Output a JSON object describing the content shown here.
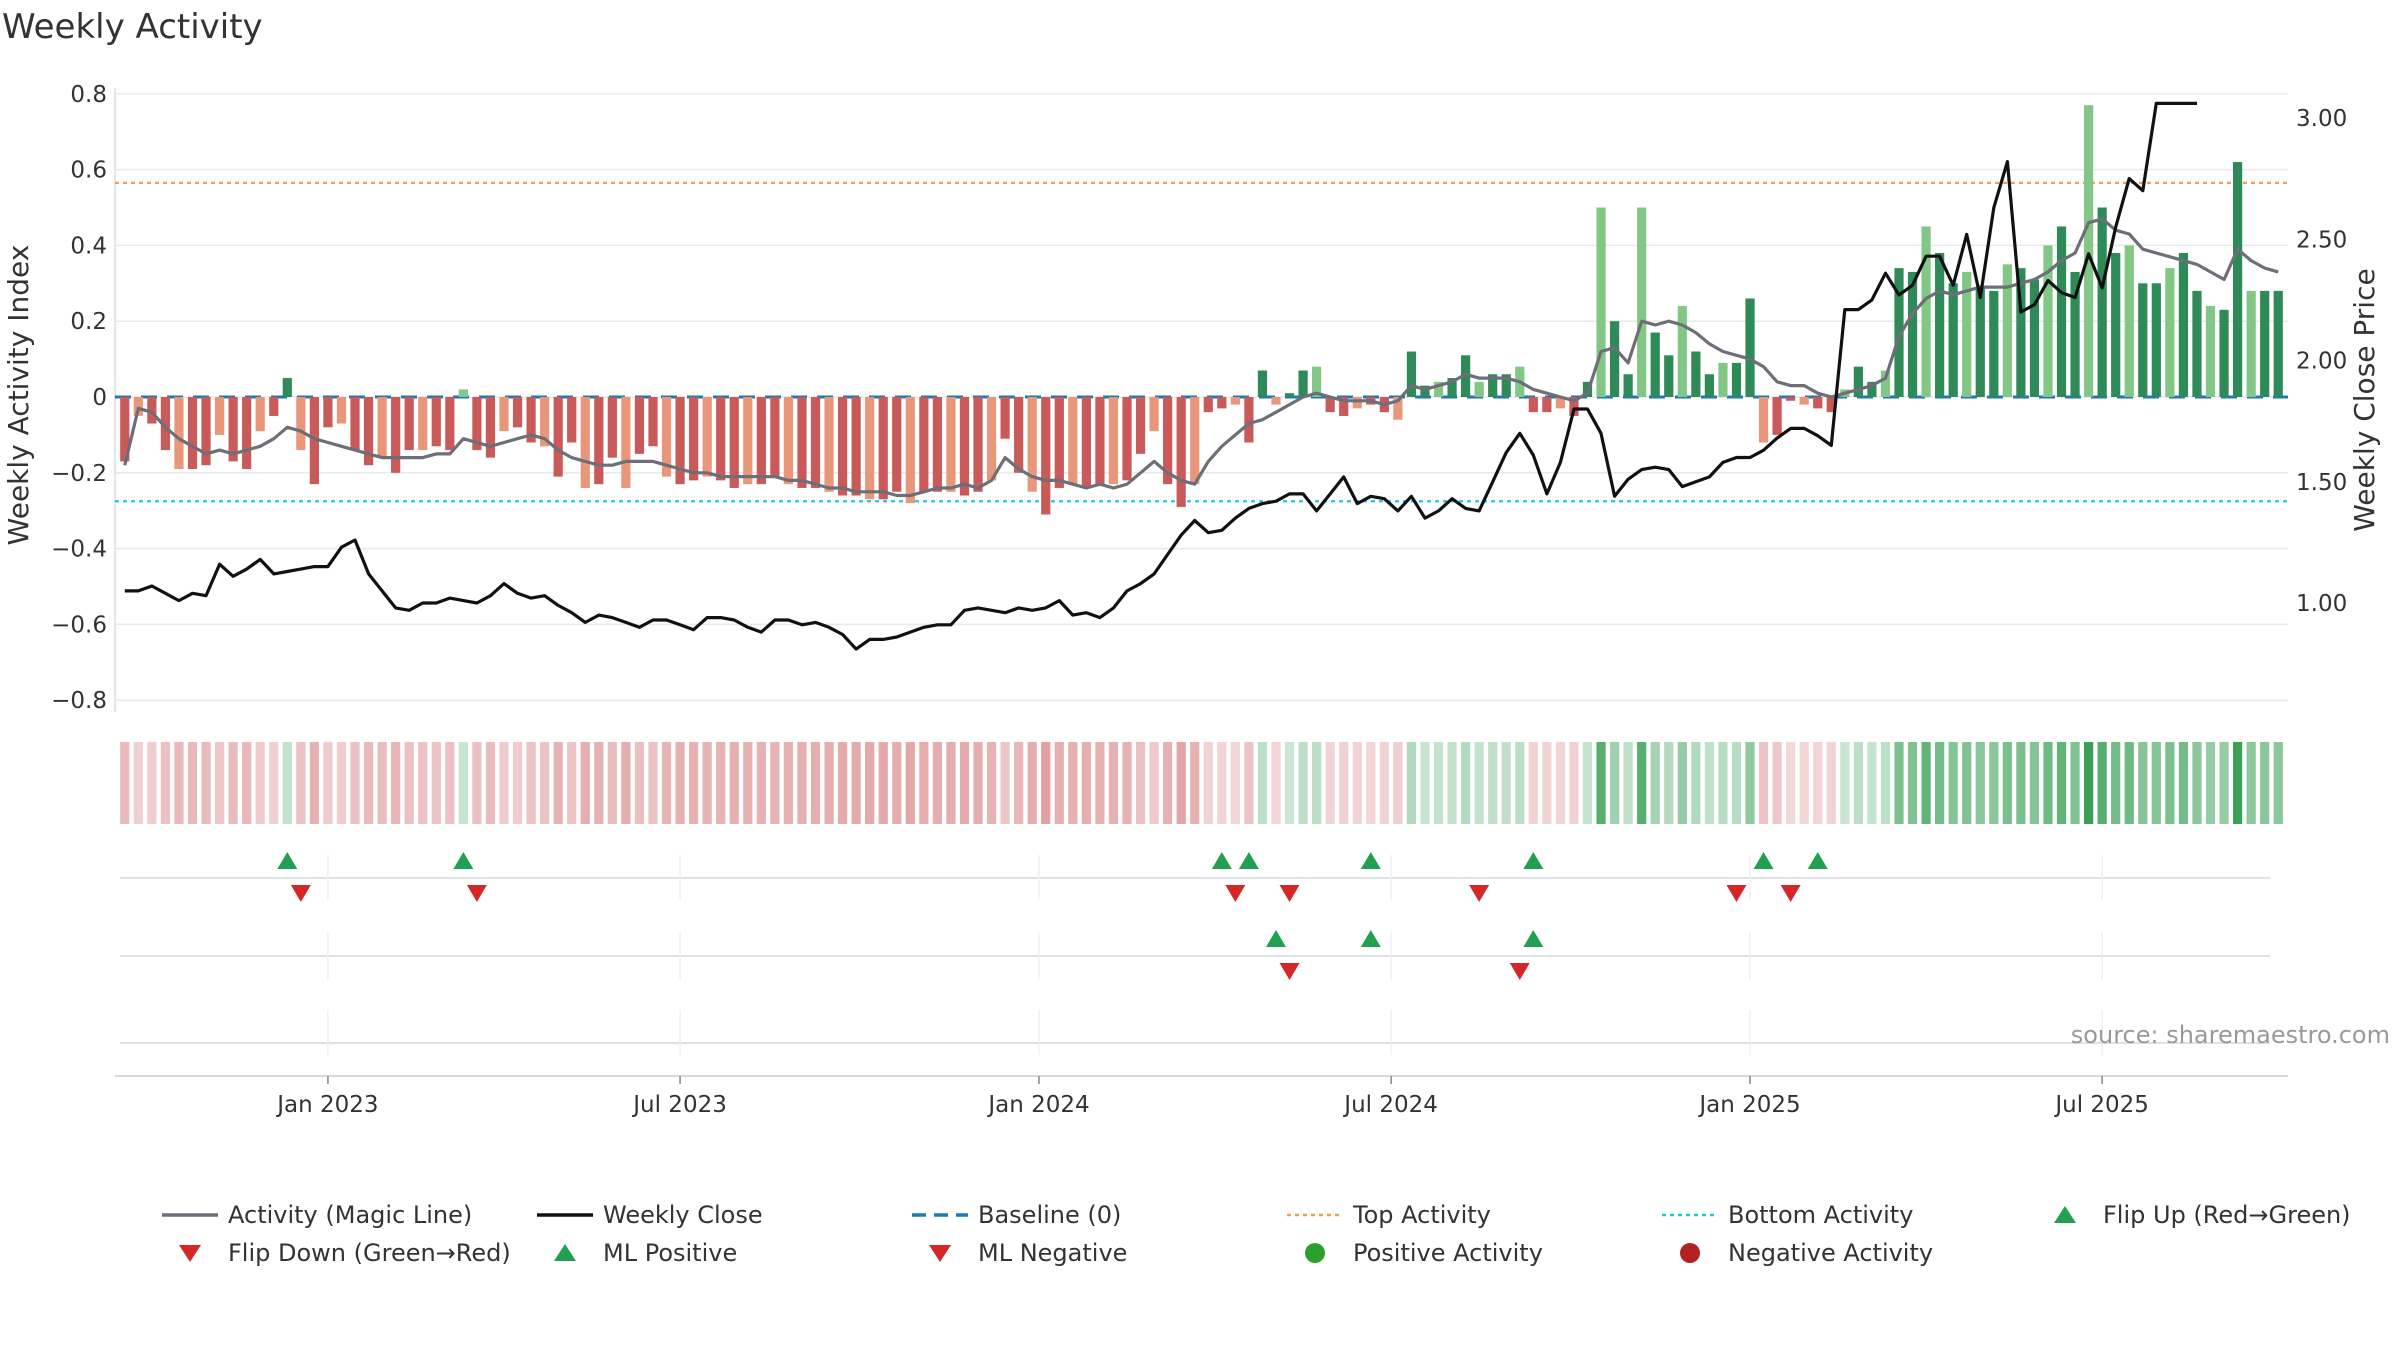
{
  "title": "Weekly Activity",
  "source": "source: sharemaestro.com",
  "colors": {
    "pos_dark": "#2e8b57",
    "pos_light": "#82c785",
    "neg_dark": "#c85a5a",
    "neg_light": "#e9977a",
    "magic": "#6e6e78",
    "close": "#111111",
    "baseline": "#1f77b4",
    "top": "#f0a050",
    "bottom": "#22c6d8",
    "up": "#22a052",
    "down": "#d62728"
  },
  "chart_data": {
    "type": "bar",
    "title": "Weekly Activity",
    "ylabel_left": "Weekly Activity Index",
    "ylabel_right": "Weekly Close Price",
    "ylim_left": [
      -0.82,
      0.82
    ],
    "ylim_right": [
      0.56,
      3.12
    ],
    "yticks_left": [
      "0.8",
      "0.6",
      "0.4",
      "0.2",
      "0",
      "−0.2",
      "−0.4",
      "−0.6",
      "−0.8"
    ],
    "yticks_right": [
      "3.00",
      "2.50",
      "2.00",
      "1.50",
      "1.00"
    ],
    "x_start_week": 0,
    "x_end_week": 158,
    "x_ticks": [
      {
        "label": "Jan 2023",
        "week": 15
      },
      {
        "label": "Jul 2023",
        "week": 41
      },
      {
        "label": "Jan 2024",
        "week": 67.5
      },
      {
        "label": "Jul 2024",
        "week": 93.5
      },
      {
        "label": "Jan 2025",
        "week": 120
      },
      {
        "label": "Jul 2025",
        "week": 146
      }
    ],
    "top_activity": 0.565,
    "bottom_activity": -0.275,
    "activity_bars": [
      -0.17,
      -0.05,
      -0.07,
      -0.14,
      -0.19,
      -0.19,
      -0.18,
      -0.1,
      -0.17,
      -0.19,
      -0.09,
      -0.05,
      0.05,
      -0.14,
      -0.23,
      -0.08,
      -0.07,
      -0.14,
      -0.18,
      -0.16,
      -0.2,
      -0.14,
      -0.14,
      -0.13,
      -0.14,
      0.02,
      -0.14,
      -0.16,
      -0.09,
      -0.08,
      -0.12,
      -0.13,
      -0.21,
      -0.12,
      -0.24,
      -0.23,
      -0.16,
      -0.24,
      -0.15,
      -0.13,
      -0.21,
      -0.23,
      -0.22,
      -0.21,
      -0.22,
      -0.24,
      -0.23,
      -0.23,
      -0.21,
      -0.23,
      -0.24,
      -0.24,
      -0.25,
      -0.26,
      -0.26,
      -0.27,
      -0.27,
      -0.25,
      -0.28,
      -0.25,
      -0.25,
      -0.25,
      -0.26,
      -0.25,
      -0.22,
      -0.11,
      -0.2,
      -0.25,
      -0.31,
      -0.24,
      -0.23,
      -0.24,
      -0.23,
      -0.23,
      -0.22,
      -0.15,
      -0.09,
      -0.23,
      -0.29,
      -0.23,
      -0.04,
      -0.03,
      -0.02,
      -0.12,
      0.07,
      -0.02,
      0.01,
      0.07,
      0.08,
      -0.04,
      -0.05,
      -0.03,
      -0.02,
      -0.04,
      -0.06,
      0.12,
      0.03,
      0.04,
      0.05,
      0.11,
      0.04,
      0.06,
      0.06,
      0.08,
      -0.04,
      -0.04,
      -0.03,
      -0.05,
      0.04,
      0.5,
      0.2,
      0.06,
      0.5,
      0.17,
      0.11,
      0.24,
      0.12,
      0.06,
      0.09,
      0.09,
      0.26,
      -0.12,
      -0.1,
      -0.01,
      -0.02,
      -0.03,
      -0.04,
      0.02,
      0.08,
      0.04,
      0.07,
      0.34,
      0.33,
      0.45,
      0.38,
      0.3,
      0.33,
      0.29,
      0.28,
      0.35,
      0.34,
      0.31,
      0.4,
      0.45,
      0.33,
      0.77,
      0.5,
      0.38,
      0.4,
      0.3,
      0.3,
      0.34,
      0.38,
      0.28,
      0.24,
      0.23,
      0.62,
      0.28,
      0.28,
      0.28
    ],
    "magic_line": [
      -0.18,
      -0.03,
      -0.04,
      -0.08,
      -0.11,
      -0.13,
      -0.15,
      -0.14,
      -0.15,
      -0.14,
      -0.13,
      -0.11,
      -0.08,
      -0.09,
      -0.11,
      -0.12,
      -0.13,
      -0.14,
      -0.15,
      -0.16,
      -0.16,
      -0.16,
      -0.16,
      -0.15,
      -0.15,
      -0.11,
      -0.12,
      -0.13,
      -0.12,
      -0.11,
      -0.1,
      -0.11,
      -0.14,
      -0.16,
      -0.17,
      -0.18,
      -0.18,
      -0.17,
      -0.17,
      -0.17,
      -0.18,
      -0.19,
      -0.2,
      -0.2,
      -0.21,
      -0.21,
      -0.21,
      -0.21,
      -0.21,
      -0.22,
      -0.22,
      -0.23,
      -0.24,
      -0.24,
      -0.25,
      -0.25,
      -0.25,
      -0.26,
      -0.26,
      -0.25,
      -0.24,
      -0.24,
      -0.23,
      -0.24,
      -0.22,
      -0.16,
      -0.19,
      -0.21,
      -0.22,
      -0.22,
      -0.23,
      -0.24,
      -0.23,
      -0.24,
      -0.23,
      -0.2,
      -0.17,
      -0.2,
      -0.22,
      -0.23,
      -0.17,
      -0.13,
      -0.1,
      -0.07,
      -0.06,
      -0.04,
      -0.02,
      0.0,
      0.01,
      -0.0,
      -0.01,
      -0.01,
      -0.01,
      -0.02,
      -0.01,
      0.03,
      0.02,
      0.03,
      0.04,
      0.06,
      0.05,
      0.05,
      0.05,
      0.04,
      0.02,
      0.01,
      0.0,
      -0.01,
      0.01,
      0.12,
      0.13,
      0.09,
      0.2,
      0.19,
      0.2,
      0.19,
      0.17,
      0.14,
      0.12,
      0.11,
      0.1,
      0.08,
      0.04,
      0.03,
      0.03,
      0.01,
      0.0,
      0.01,
      0.02,
      0.03,
      0.05,
      0.16,
      0.22,
      0.26,
      0.28,
      0.27,
      0.28,
      0.29,
      0.29,
      0.29,
      0.3,
      0.31,
      0.33,
      0.36,
      0.38,
      0.46,
      0.47,
      0.44,
      0.43,
      0.39,
      0.38,
      0.37,
      0.36,
      0.35,
      0.33,
      0.31,
      0.39,
      0.36,
      0.34,
      0.33
    ],
    "weekly_close": [
      1.05,
      1.05,
      1.07,
      1.04,
      1.01,
      1.04,
      1.03,
      1.16,
      1.11,
      1.14,
      1.18,
      1.12,
      1.13,
      1.14,
      1.15,
      1.15,
      1.23,
      1.26,
      1.12,
      1.05,
      0.98,
      0.97,
      1.0,
      1.0,
      1.02,
      1.01,
      1.0,
      1.03,
      1.08,
      1.04,
      1.02,
      1.03,
      0.99,
      0.96,
      0.92,
      0.95,
      0.94,
      0.92,
      0.9,
      0.93,
      0.93,
      0.91,
      0.89,
      0.94,
      0.94,
      0.93,
      0.9,
      0.88,
      0.93,
      0.93,
      0.91,
      0.92,
      0.9,
      0.87,
      0.81,
      0.85,
      0.85,
      0.86,
      0.88,
      0.9,
      0.91,
      0.91,
      0.97,
      0.98,
      0.97,
      0.96,
      0.98,
      0.97,
      0.98,
      1.01,
      0.95,
      0.96,
      0.94,
      0.98,
      1.05,
      1.08,
      1.12,
      1.2,
      1.28,
      1.34,
      1.29,
      1.3,
      1.35,
      1.39,
      1.41,
      1.42,
      1.45,
      1.45,
      1.38,
      1.45,
      1.52,
      1.41,
      1.44,
      1.43,
      1.38,
      1.44,
      1.35,
      1.38,
      1.43,
      1.39,
      1.38,
      1.5,
      1.62,
      1.7,
      1.61,
      1.45,
      1.58,
      1.8,
      1.8,
      1.7,
      1.44,
      1.51,
      1.55,
      1.56,
      1.55,
      1.48,
      1.5,
      1.52,
      1.58,
      1.6,
      1.6,
      1.63,
      1.68,
      1.72,
      1.72,
      1.69,
      1.65,
      2.21,
      2.21,
      2.25,
      2.36,
      2.27,
      2.31,
      2.43,
      2.43,
      2.31,
      2.52,
      2.26,
      2.63,
      2.82,
      2.2,
      2.23,
      2.33,
      2.28,
      2.26,
      2.44,
      2.3,
      2.55,
      2.75,
      2.7,
      3.06,
      3.06,
      3.06,
      3.06
    ],
    "flips": {
      "flip_up_weeks": [
        12,
        25,
        81,
        83,
        92,
        104,
        121,
        125
      ],
      "flip_down_weeks": [
        13,
        26,
        82,
        86,
        100,
        119,
        123
      ],
      "ml_positive_weeks": [
        85,
        92,
        104
      ],
      "ml_negative_weeks": [
        86,
        103
      ]
    },
    "legend": [
      {
        "label": "Activity (Magic Line)",
        "symbol": "line-gray"
      },
      {
        "label": "Weekly Close",
        "symbol": "line-black"
      },
      {
        "label": "Baseline (0)",
        "symbol": "dash-blue"
      },
      {
        "label": "Top Activity",
        "symbol": "dot-orange"
      },
      {
        "label": "Bottom Activity",
        "symbol": "dot-cyan"
      },
      {
        "label": "Flip Up (Red→Green)",
        "symbol": "triangle-up-green"
      },
      {
        "label": "Flip Down (Green→Red)",
        "symbol": "triangle-down-red"
      },
      {
        "label": "ML Positive",
        "symbol": "triangle-up-green"
      },
      {
        "label": "ML Negative",
        "symbol": "triangle-down-red"
      },
      {
        "label": "Positive Activity",
        "symbol": "circle-green"
      },
      {
        "label": "Negative Activity",
        "symbol": "circle-darkred"
      }
    ]
  }
}
